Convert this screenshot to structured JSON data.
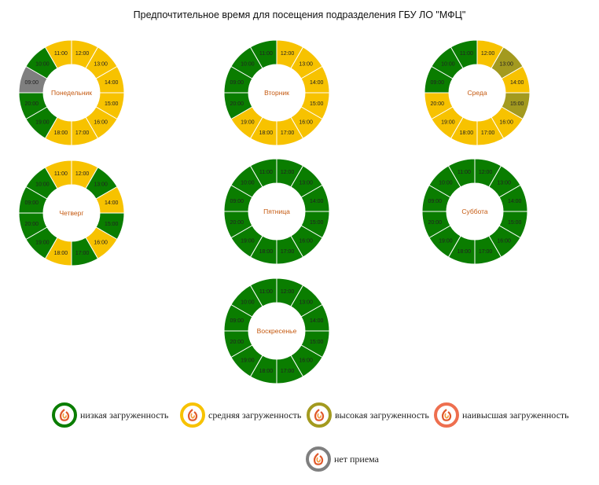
{
  "title": "Предпочтительное время для посещения подразделения ГБУ ЛО \"МФЦ\"",
  "colors": {
    "low": "#0a7d00",
    "medium": "#f7c200",
    "high": "#a39a1f",
    "highest": "#ee6f4f",
    "closed": "#7f7f7f",
    "day_label": "#c55a11"
  },
  "chart_data": {
    "type": "donut",
    "segment_order_note": "",
    "days": [
      {
        "day": "Понедельник",
        "slots": [
          {
            "time": "12:00",
            "load": "medium"
          },
          {
            "time": "13:00",
            "load": "medium"
          },
          {
            "time": "14:00",
            "load": "medium"
          },
          {
            "time": "15:00",
            "load": "medium"
          },
          {
            "time": "16:00",
            "load": "medium"
          },
          {
            "time": "17:00",
            "load": "medium"
          },
          {
            "time": "18:00",
            "load": "medium"
          },
          {
            "time": "19:00",
            "load": "low"
          },
          {
            "time": "20:00",
            "load": "low"
          },
          {
            "time": "09:00",
            "load": "closed"
          },
          {
            "time": "10:00",
            "load": "low"
          },
          {
            "time": "11:00",
            "load": "medium"
          }
        ]
      },
      {
        "day": "Вторник",
        "slots": [
          {
            "time": "12:00",
            "load": "medium"
          },
          {
            "time": "13:00",
            "load": "medium"
          },
          {
            "time": "14:00",
            "load": "medium"
          },
          {
            "time": "15:00",
            "load": "medium"
          },
          {
            "time": "16:00",
            "load": "medium"
          },
          {
            "time": "17:00",
            "load": "medium"
          },
          {
            "time": "18:00",
            "load": "medium"
          },
          {
            "time": "19:00",
            "load": "medium"
          },
          {
            "time": "20:00",
            "load": "low"
          },
          {
            "time": "09:00",
            "load": "low"
          },
          {
            "time": "10:00",
            "load": "low"
          },
          {
            "time": "11:00",
            "load": "low"
          }
        ]
      },
      {
        "day": "Среда",
        "slots": [
          {
            "time": "12:00",
            "load": "medium"
          },
          {
            "time": "13:00",
            "load": "high"
          },
          {
            "time": "14:00",
            "load": "medium"
          },
          {
            "time": "15:00",
            "load": "high"
          },
          {
            "time": "16:00",
            "load": "medium"
          },
          {
            "time": "17:00",
            "load": "medium"
          },
          {
            "time": "18:00",
            "load": "medium"
          },
          {
            "time": "19:00",
            "load": "medium"
          },
          {
            "time": "20:00",
            "load": "medium"
          },
          {
            "time": "09:00",
            "load": "low"
          },
          {
            "time": "10:00",
            "load": "low"
          },
          {
            "time": "11:00",
            "load": "low"
          }
        ]
      },
      {
        "day": "Четверг",
        "slots": [
          {
            "time": "12:00",
            "load": "medium"
          },
          {
            "time": "13:00",
            "load": "low"
          },
          {
            "time": "14:00",
            "load": "medium"
          },
          {
            "time": "15:00",
            "load": "low"
          },
          {
            "time": "16:00",
            "load": "medium"
          },
          {
            "time": "17:00",
            "load": "low"
          },
          {
            "time": "18:00",
            "load": "medium"
          },
          {
            "time": "19:00",
            "load": "low"
          },
          {
            "time": "20:00",
            "load": "low"
          },
          {
            "time": "09:00",
            "load": "low"
          },
          {
            "time": "10:00",
            "load": "low"
          },
          {
            "time": "11:00",
            "load": "medium"
          }
        ]
      },
      {
        "day": "Пятница",
        "slots": [
          {
            "time": "12:00",
            "load": "low"
          },
          {
            "time": "13:00",
            "load": "low"
          },
          {
            "time": "14:00",
            "load": "low"
          },
          {
            "time": "15:00",
            "load": "low"
          },
          {
            "time": "16:00",
            "load": "low"
          },
          {
            "time": "17:00",
            "load": "low"
          },
          {
            "time": "18:00",
            "load": "low"
          },
          {
            "time": "19:00",
            "load": "low"
          },
          {
            "time": "20:00",
            "load": "low"
          },
          {
            "time": "09:00",
            "load": "low"
          },
          {
            "time": "10:00",
            "load": "low"
          },
          {
            "time": "11:00",
            "load": "low"
          }
        ]
      },
      {
        "day": "Суббота",
        "slots": [
          {
            "time": "12:00",
            "load": "low"
          },
          {
            "time": "13:00",
            "load": "low"
          },
          {
            "time": "14:00",
            "load": "low"
          },
          {
            "time": "15:00",
            "load": "low"
          },
          {
            "time": "16:00",
            "load": "low"
          },
          {
            "time": "17:00",
            "load": "low"
          },
          {
            "time": "18:00",
            "load": "low"
          },
          {
            "time": "19:00",
            "load": "low"
          },
          {
            "time": "20:00",
            "load": "low"
          },
          {
            "time": "09:00",
            "load": "low"
          },
          {
            "time": "10:00",
            "load": "low"
          },
          {
            "time": "11:00",
            "load": "low"
          }
        ]
      },
      {
        "day": "Воскресенье",
        "slots": [
          {
            "time": "12:00",
            "load": "low"
          },
          {
            "time": "13:00",
            "load": "low"
          },
          {
            "time": "14:00",
            "load": "low"
          },
          {
            "time": "15:00",
            "load": "low"
          },
          {
            "time": "16:00",
            "load": "low"
          },
          {
            "time": "17:00",
            "load": "low"
          },
          {
            "time": "18:00",
            "load": "low"
          },
          {
            "time": "19:00",
            "load": "low"
          },
          {
            "time": "20:00",
            "load": "low"
          },
          {
            "time": "09:00",
            "load": "low"
          },
          {
            "time": "10:00",
            "load": "low"
          },
          {
            "time": "11:00",
            "load": "low"
          }
        ]
      }
    ]
  },
  "legend": [
    {
      "key": "low",
      "label": "низкая загруженность"
    },
    {
      "key": "medium",
      "label": "средняя загруженность"
    },
    {
      "key": "high",
      "label": "высокая загруженность"
    },
    {
      "key": "highest",
      "label": "наивысшая загруженность"
    },
    {
      "key": "closed",
      "label": "нет приема"
    }
  ]
}
